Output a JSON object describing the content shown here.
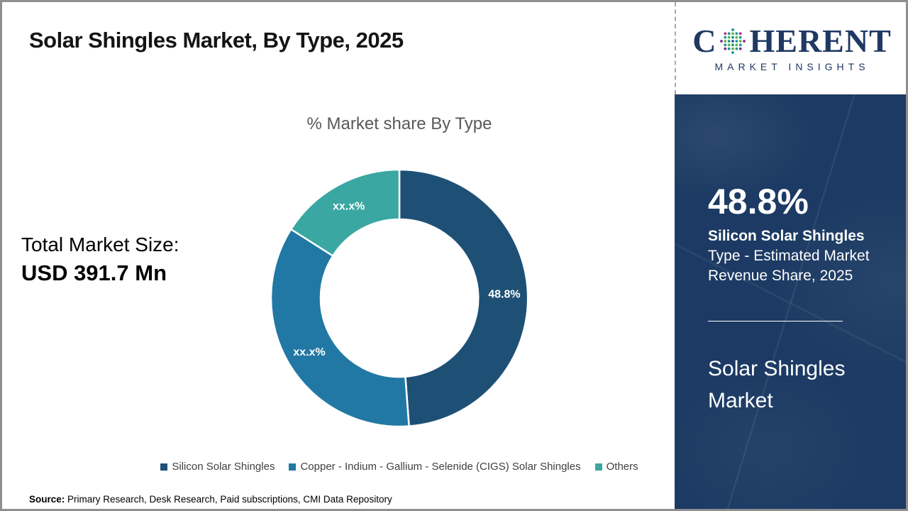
{
  "header": {
    "title": "Solar Shingles Market, By Type, 2025"
  },
  "logo": {
    "brand_prefix": "C",
    "brand_suffix": "HERENT",
    "subtitle": "MARKET INSIGHTS",
    "brand_color": "#1f3864",
    "globe_dot_colors": [
      "#149a94",
      "#66b245",
      "#27519b",
      "#be2a8c",
      "#7a2f8c"
    ]
  },
  "chart_data": {
    "type": "pie",
    "donut": true,
    "title": "% Market share By Type",
    "categories": [
      "Silicon Solar Shingles",
      "Copper - Indium - Gallium - Selenide (CIGS) Solar Shingles",
      "Others"
    ],
    "values": [
      48.8,
      35.2,
      16.0
    ],
    "display_labels": [
      "48.8%",
      "xx.x%",
      "xx.x%"
    ],
    "colors": [
      "#1e5076",
      "#2278a4",
      "#3aa7a3"
    ],
    "legend_position": "bottom",
    "start_angle_deg": 0,
    "note_only_labeled_value": "48.8% (other slice values masked as xx.x% in source image)"
  },
  "market_size": {
    "label": "Total Market Size:",
    "value": "USD 391.7 Mn"
  },
  "sidebar": {
    "highlight_value": "48.8%",
    "highlight_title": "Silicon Solar Shingles",
    "highlight_line2": "Type - Estimated Market",
    "highlight_line3": "Revenue Share, 2025",
    "market_name": "Solar Shingles Market",
    "background_color": "#1c3a63"
  },
  "source": {
    "label": "Source:",
    "text": "Primary Research, Desk Research, Paid subscriptions, CMI Data Repository"
  }
}
